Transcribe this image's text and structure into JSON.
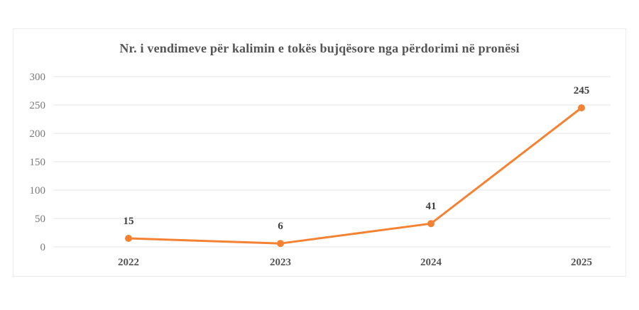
{
  "chart_data": {
    "type": "line",
    "title": "Nr. i vendimeve për kalimin e tokës bujqësore nga përdorimi në pronësi",
    "categories": [
      "2022",
      "2023",
      "2024",
      "2025"
    ],
    "series": [
      {
        "values": [
          15,
          6,
          41,
          245
        ],
        "data_labels": [
          "15",
          "6",
          "41",
          "245"
        ],
        "color": "#f58233"
      }
    ],
    "ylim": [
      0,
      300
    ],
    "yticks": [
      0,
      50,
      100,
      150,
      200,
      250,
      300
    ],
    "ytick_labels": [
      "0",
      "50",
      "100",
      "150",
      "200",
      "250",
      "300"
    ],
    "grid": true,
    "grid_color": "#e6e6e6",
    "xlabel": "",
    "ylabel": ""
  }
}
